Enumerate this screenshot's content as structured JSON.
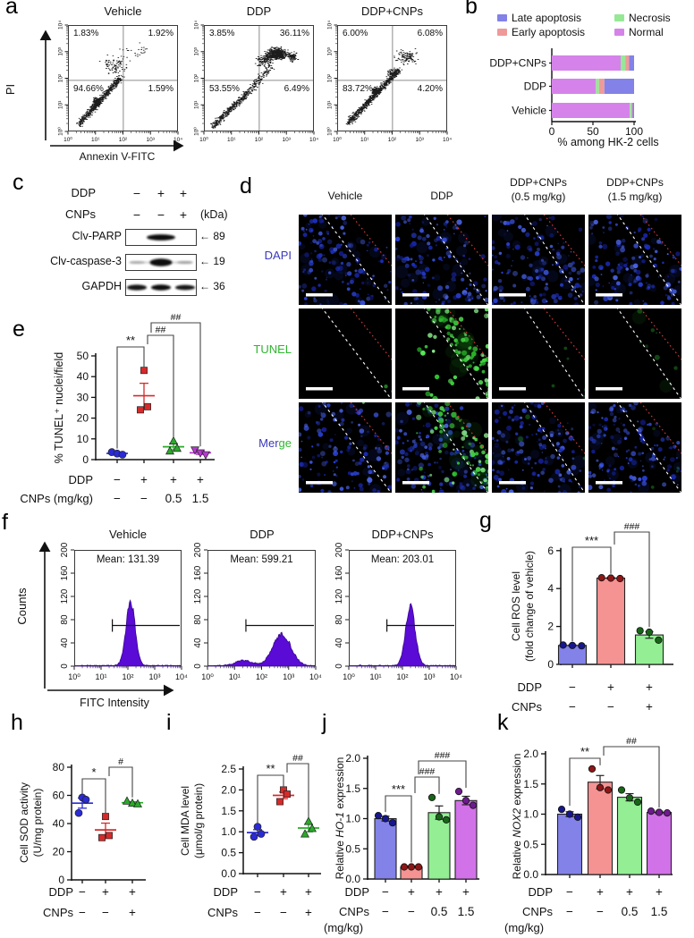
{
  "colors": {
    "accent_blue_bar": "#8282e8",
    "accent_red_bar": "#f59393",
    "accent_green_bar": "#94ee94",
    "accent_violet_bar": "#d272e8",
    "histogram_fill": "#5a0bd6",
    "dapi_text": "#3939bb",
    "tunel_text": "#2fb52f"
  },
  "panel_letters": {
    "a": "a",
    "b": "b",
    "c": "c",
    "d": "d",
    "e": "e",
    "f": "f",
    "g": "g",
    "h": "h",
    "i": "i",
    "j": "j",
    "k": "k"
  },
  "panel_a": {
    "y_label": "PI",
    "x_label": "Annexin V-FITC",
    "log_ticks": [
      "10⁰",
      "10¹",
      "10²",
      "10³",
      "10⁴"
    ],
    "plots": [
      {
        "title": "Vehicle",
        "quadrants": {
          "upper_left": "1.83%",
          "upper_right": "1.92%",
          "lower_left": "94.66%",
          "lower_right": "1.59%"
        }
      },
      {
        "title": "DDP",
        "quadrants": {
          "upper_left": "3.85%",
          "upper_right": "36.11%",
          "lower_left": "53.55%",
          "lower_right": "6.49%"
        }
      },
      {
        "title": "DDP+CNPs",
        "quadrants": {
          "upper_left": "6.00%",
          "upper_right": "6.08%",
          "lower_left": "83.72%",
          "lower_right": "4.20%"
        }
      }
    ]
  },
  "panel_b_legend": [
    {
      "label": "Late apoptosis",
      "color": "#8282e8"
    },
    {
      "label": "Early apoptosis",
      "color": "#ef9a9a"
    },
    {
      "label": "Necrosis",
      "color": "#96e896"
    },
    {
      "label": "Normal",
      "color": "#d583ea"
    }
  ],
  "panel_c": {
    "treatment_rows": [
      {
        "label": "DDP",
        "values": [
          "−",
          "+",
          "+"
        ]
      },
      {
        "label": "CNPs",
        "values": [
          "−",
          "−",
          "+"
        ]
      }
    ],
    "unit": "(kDa)",
    "arrow": "←",
    "blots": [
      {
        "label": "Clv-PARP",
        "kda": "89"
      },
      {
        "label": "Clv-caspase-3",
        "kda": "19"
      },
      {
        "label": "GAPDH",
        "kda": "36"
      }
    ]
  },
  "panel_d": {
    "col_titles": [
      [
        "Vehicle"
      ],
      [
        "DDP"
      ],
      [
        "DDP+CNPs",
        "(0.5 mg/kg)"
      ],
      [
        "DDP+CNPs",
        "(1.5 mg/kg)"
      ]
    ],
    "row_labels": {
      "dapi": "DAPI",
      "tunel": "TUNEL",
      "merge_a": "Mer",
      "merge_b": "ge"
    }
  },
  "chart_data": [
    {
      "panel": "b",
      "type": "bar",
      "orientation": "horizontal",
      "stacked": true,
      "categories": [
        "DDP+CNPs",
        "DDP",
        "Vehicle"
      ],
      "series": [
        {
          "name": "Normal",
          "color": "#d583ea",
          "values": [
            83.72,
            53.55,
            94.66
          ]
        },
        {
          "name": "Necrosis",
          "color": "#96e896",
          "values": [
            6.0,
            3.85,
            1.83
          ]
        },
        {
          "name": "Early apoptosis",
          "color": "#ef9a9a",
          "values": [
            4.2,
            6.49,
            1.59
          ]
        },
        {
          "name": "Late apoptosis",
          "color": "#8282e8",
          "values": [
            6.08,
            36.11,
            1.92
          ]
        }
      ],
      "xlabel": "% among HK-2 cells",
      "xticks": [
        0,
        50,
        100
      ],
      "xlim": [
        0,
        100
      ],
      "legend_position": "top"
    },
    {
      "panel": "e",
      "type": "scatter",
      "ylabel": "% TUNEL⁺ nuclei/field",
      "ylim": [
        0,
        50
      ],
      "yticks": [
        0,
        10,
        20,
        30,
        40,
        50
      ],
      "groups": [
        {
          "points": [
            3.6,
            2.9,
            2.4
          ],
          "mean": 3.0,
          "sem": 0.5,
          "color": "#2a2ad6",
          "marker": "circle"
        },
        {
          "points": [
            43,
            25.5,
            24
          ],
          "mean": 30.8,
          "sem": 6.0,
          "color": "#d62a2a",
          "marker": "square"
        },
        {
          "points": [
            9.0,
            5.5,
            4.2
          ],
          "mean": 6.2,
          "sem": 1.5,
          "color": "#2aaa2a",
          "marker": "triangle"
        },
        {
          "points": [
            4.6,
            3.2,
            2.3
          ],
          "mean": 3.3,
          "sem": 0.8,
          "color": "#b53ace",
          "marker": "triangle_down"
        }
      ],
      "x_rows": [
        {
          "label": "DDP",
          "values": [
            "−",
            "+",
            "+",
            "+"
          ]
        },
        {
          "label": "CNPs (mg/kg)",
          "values": [
            "−",
            "−",
            "0.5",
            "1.5"
          ]
        }
      ],
      "significance": [
        {
          "from": 0,
          "to": 1,
          "label": "**"
        },
        {
          "from": 1,
          "to": 2,
          "label": "##"
        },
        {
          "from": 1,
          "to": 3,
          "label": "##"
        }
      ]
    },
    {
      "panel": "f",
      "type": "histogram",
      "ylabel": "Counts",
      "xlabel": "FITC Intensity",
      "ylim": [
        0,
        200
      ],
      "yticks": [
        0,
        40,
        80,
        120,
        160,
        200
      ],
      "xticks": [
        "10⁰",
        "10¹",
        "10²",
        "10³",
        "10⁴"
      ],
      "gate_counts": 70,
      "fill": "#5a0bd6",
      "plots": [
        {
          "title": "Vehicle",
          "mean_label": "Mean: 131.39",
          "mean": 131.39,
          "peak_log": 2.1,
          "peak_counts": 110,
          "spread_log": 0.17
        },
        {
          "title": "DDP",
          "mean_label": "Mean: 599.21",
          "mean": 599.21,
          "peak_log": 2.75,
          "peak_counts": 54,
          "spread_log": 0.33,
          "shoulder_log": 1.35,
          "shoulder_counts": 9
        },
        {
          "title": "DDP+CNPs",
          "mean_label": "Mean: 203.01",
          "mean": 203.01,
          "peak_log": 2.3,
          "peak_counts": 100,
          "spread_log": 0.18
        }
      ]
    },
    {
      "panel": "g",
      "type": "bar",
      "ylabel_lines": [
        "Cell ROS level",
        "(fold change of vehicle)"
      ],
      "ylim": [
        0,
        6
      ],
      "yticks": [
        0,
        2,
        4,
        6
      ],
      "bars": [
        {
          "value": 1.0,
          "sem": 0.03,
          "points": [
            1.02,
            1.0,
            0.98
          ],
          "fill": "#8282e8",
          "dot": "#16168e"
        },
        {
          "value": 4.55,
          "sem": 0.04,
          "points": [
            4.57,
            4.55,
            4.53
          ],
          "fill": "#f59393",
          "dot": "#8e1616"
        },
        {
          "value": 1.55,
          "sem": 0.17,
          "points": [
            1.78,
            1.7,
            1.28
          ],
          "fill": "#94ee94",
          "dot": "#176617"
        }
      ],
      "x_rows": [
        {
          "label": "DDP",
          "values": [
            "−",
            "+",
            "+"
          ]
        },
        {
          "label": "CNPs",
          "values": [
            "−",
            "−",
            "+"
          ]
        }
      ],
      "significance": [
        {
          "from": 0,
          "to": 1,
          "label": "***"
        },
        {
          "from": 1,
          "to": 2,
          "label": "###"
        }
      ]
    },
    {
      "panel": "h",
      "type": "scatter",
      "ylabel_lines": [
        "Cell SOD activity",
        "(U/mg protein)"
      ],
      "ylim": [
        0,
        80
      ],
      "yticks": [
        0,
        20,
        40,
        60,
        80
      ],
      "groups": [
        {
          "points": [
            58.5,
            57,
            47.5
          ],
          "mean": 54.5,
          "sem": 3.6,
          "color": "#2a2ad6",
          "marker": "circle"
        },
        {
          "points": [
            45,
            31.5,
            30
          ],
          "mean": 35.5,
          "sem": 4.8,
          "color": "#d62a2a",
          "marker": "square"
        },
        {
          "points": [
            56,
            54.5,
            54
          ],
          "mean": 54.8,
          "sem": 0.7,
          "color": "#2aaa2a",
          "marker": "triangle"
        }
      ],
      "x_rows": [
        {
          "label": "DDP",
          "values": [
            "−",
            "+",
            "+"
          ]
        },
        {
          "label": "CNPs",
          "values": [
            "−",
            "−",
            "+"
          ]
        }
      ],
      "significance": [
        {
          "from": 0,
          "to": 1,
          "label": "*"
        },
        {
          "from": 1,
          "to": 2,
          "label": "#"
        }
      ]
    },
    {
      "panel": "i",
      "type": "scatter",
      "ylabel_lines": [
        "Cell MDA level",
        "(μmol/g protein)"
      ],
      "ylim": [
        0,
        2.5
      ],
      "yticks": [
        "0.0",
        "0.5",
        "1.0",
        "1.5",
        "2.0",
        "2.5"
      ],
      "groups": [
        {
          "points": [
            1.12,
            0.95,
            0.88
          ],
          "mean": 0.98,
          "sem": 0.07,
          "color": "#2a2ad6",
          "marker": "circle"
        },
        {
          "points": [
            2.0,
            1.9,
            1.72
          ],
          "mean": 1.87,
          "sem": 0.08,
          "color": "#d62a2a",
          "marker": "square"
        },
        {
          "points": [
            1.25,
            1.08,
            0.95
          ],
          "mean": 1.09,
          "sem": 0.09,
          "color": "#2aaa2a",
          "marker": "triangle"
        }
      ],
      "x_rows": [
        {
          "label": "DDP",
          "values": [
            "−",
            "+",
            "+"
          ]
        },
        {
          "label": "CNPs",
          "values": [
            "−",
            "−",
            "+"
          ]
        }
      ],
      "significance": [
        {
          "from": 0,
          "to": 1,
          "label": "**"
        },
        {
          "from": 1,
          "to": 2,
          "label": "##"
        }
      ]
    },
    {
      "panel": "j",
      "type": "bar",
      "ylabel_parts": {
        "prefix": "Relative ",
        "gene": "HO-1",
        "suffix": " expression"
      },
      "ylim": [
        0,
        2
      ],
      "yticks": [
        "0.0",
        "0.5",
        "1.0",
        "1.5",
        "2.0"
      ],
      "bars": [
        {
          "value": 1.0,
          "sem": 0.04,
          "points": [
            1.05,
            1.0,
            0.93
          ],
          "fill": "#8282e8",
          "dot": "#16168e"
        },
        {
          "value": 0.2,
          "sem": 0.015,
          "points": [
            0.2,
            0.2,
            0.2
          ],
          "fill": "#f59393",
          "dot": "#8e1616"
        },
        {
          "value": 1.1,
          "sem": 0.11,
          "points": [
            1.35,
            1.03,
            0.98
          ],
          "fill": "#94ee94",
          "dot": "#176617"
        },
        {
          "value": 1.3,
          "sem": 0.07,
          "points": [
            1.45,
            1.3,
            1.22
          ],
          "fill": "#d272e8",
          "dot": "#6e1a8e"
        }
      ],
      "x_rows": [
        {
          "label": "DDP",
          "values": [
            "−",
            "+",
            "+",
            "+"
          ]
        },
        {
          "label": "CNPs",
          "values": [
            "−",
            "−",
            "0.5",
            "1.5"
          ],
          "sublabel": "(mg/kg)"
        }
      ],
      "significance": [
        {
          "from": 0,
          "to": 1,
          "label": "***"
        },
        {
          "from": 1,
          "to": 2,
          "label": "###"
        },
        {
          "from": 1,
          "to": 3,
          "label": "###"
        }
      ]
    },
    {
      "panel": "k",
      "type": "bar",
      "ylabel_parts": {
        "prefix": "Relative ",
        "gene": "NOX2",
        "suffix": " expression"
      },
      "ylim": [
        0,
        2
      ],
      "yticks": [
        "0.0",
        "0.5",
        "1.0",
        "1.5",
        "2.0"
      ],
      "bars": [
        {
          "value": 1.0,
          "sem": 0.04,
          "points": [
            1.08,
            1.0,
            0.95
          ],
          "fill": "#8282e8",
          "dot": "#16168e"
        },
        {
          "value": 1.53,
          "sem": 0.11,
          "points": [
            1.75,
            1.44,
            1.4
          ],
          "fill": "#f59393",
          "dot": "#8e1616"
        },
        {
          "value": 1.28,
          "sem": 0.06,
          "points": [
            1.4,
            1.27,
            1.2
          ],
          "fill": "#94ee94",
          "dot": "#176617"
        },
        {
          "value": 1.03,
          "sem": 0.02,
          "points": [
            1.05,
            1.03,
            1.02
          ],
          "fill": "#d272e8",
          "dot": "#6e1a8e"
        }
      ],
      "x_rows": [
        {
          "label": "DDP",
          "values": [
            "−",
            "+",
            "+",
            "+"
          ]
        },
        {
          "label": "CNPs",
          "values": [
            "−",
            "−",
            "0.5",
            "1.5"
          ],
          "sublabel": "(mg/kg)"
        }
      ],
      "significance": [
        {
          "from": 0,
          "to": 1,
          "label": "**"
        },
        {
          "from": 1,
          "to": 3,
          "label": "##"
        }
      ]
    }
  ]
}
